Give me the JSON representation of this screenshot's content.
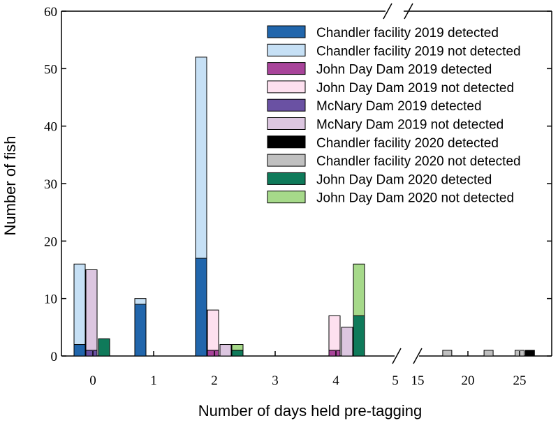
{
  "chart_data": {
    "type": "bar",
    "xlabel": "Number of days held pre-tagging",
    "ylabel": "Number of fish",
    "ylim": [
      0,
      60
    ],
    "yticks": [
      "0",
      "10",
      "20",
      "30",
      "40",
      "50",
      "60"
    ],
    "xticks_left": [
      "0",
      "1",
      "2",
      "3",
      "4",
      "5"
    ],
    "xticks_right": [
      "15",
      "20",
      "25"
    ],
    "axis_break": "between 5 and 15",
    "legend_position": "top-right",
    "series": [
      {
        "name": "Chandler facility 2019 detected",
        "color": "#2166ac"
      },
      {
        "name": "Chandler facility 2019 not detected",
        "color": "#c6e0f5"
      },
      {
        "name": "John Day Dam 2019 detected",
        "color": "#a8449a"
      },
      {
        "name": "John Day Dam 2019 not detected",
        "color": "#fde0ef"
      },
      {
        "name": "McNary Dam 2019 detected",
        "color": "#6a51a3"
      },
      {
        "name": "McNary Dam 2019 not detected",
        "color": "#dcc6e0"
      },
      {
        "name": "Chandler facility 2020 detected",
        "color": "#000000"
      },
      {
        "name": "Chandler facility 2020 not detected",
        "color": "#c0c0c0"
      },
      {
        "name": "John Day Dam 2020 detected",
        "color": "#0f7a5a"
      },
      {
        "name": "John Day Dam 2020 not detected",
        "color": "#a6d98a"
      }
    ],
    "bars": [
      {
        "days": 0,
        "group": "Chandler facility 2019",
        "detected": 2,
        "not_detected": 14
      },
      {
        "days": 0,
        "group": "McNary Dam 2019",
        "detected": 1,
        "not_detected": 14
      },
      {
        "days": 0,
        "group": "John Day Dam 2020",
        "detected": 3,
        "not_detected": 0
      },
      {
        "days": 1,
        "group": "Chandler facility 2019",
        "detected": 9,
        "not_detected": 1
      },
      {
        "days": 2,
        "group": "Chandler facility 2019",
        "detected": 17,
        "not_detected": 35
      },
      {
        "days": 2,
        "group": "John Day Dam 2019",
        "detected": 1,
        "not_detected": 7
      },
      {
        "days": 2,
        "group": "McNary Dam 2019",
        "detected": 0,
        "not_detected": 2
      },
      {
        "days": 2,
        "group": "John Day Dam 2020",
        "detected": 1,
        "not_detected": 1
      },
      {
        "days": 4,
        "group": "John Day Dam 2019",
        "detected": 1,
        "not_detected": 6
      },
      {
        "days": 4,
        "group": "McNary Dam 2019",
        "detected": 0,
        "not_detected": 5
      },
      {
        "days": 4,
        "group": "John Day Dam 2020",
        "detected": 7,
        "not_detected": 9
      },
      {
        "days": 18,
        "group": "Chandler facility 2020",
        "detected": 0,
        "not_detected": 1
      },
      {
        "days": 22,
        "group": "Chandler facility 2020",
        "detected": 0,
        "not_detected": 1
      },
      {
        "days": 25,
        "group": "Chandler facility 2020",
        "detected": 0,
        "not_detected": 1
      },
      {
        "days": 26,
        "group": "Chandler facility 2020",
        "detected": 1,
        "not_detected": 0
      }
    ]
  }
}
